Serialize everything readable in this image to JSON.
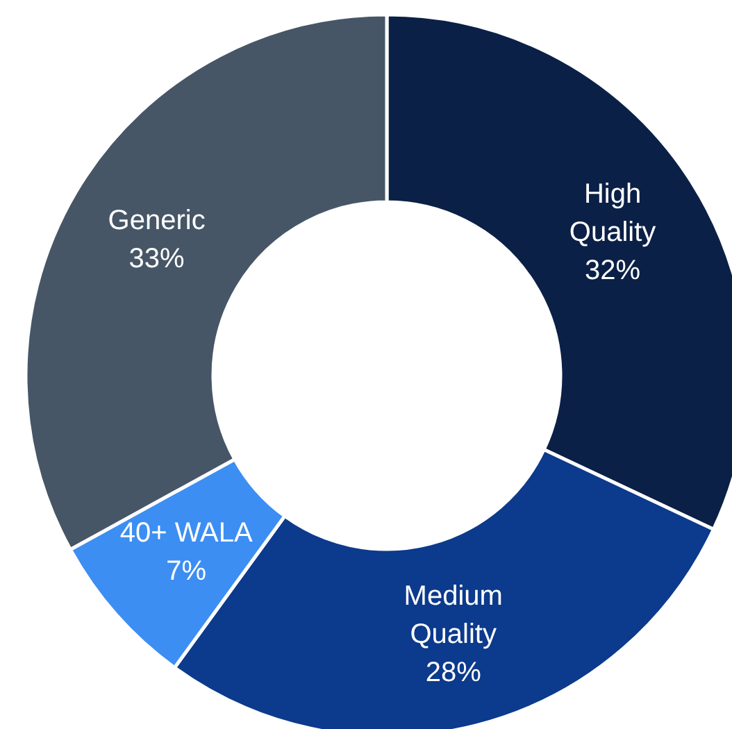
{
  "chart_data": {
    "type": "donut",
    "categories": [
      "High Quality",
      "Medium Quality",
      "40+ WALA",
      "Generic"
    ],
    "values": [
      32,
      28,
      7,
      33
    ],
    "colors": [
      "#0b2046",
      "#0c3a8c",
      "#3d8ef2",
      "#465666"
    ],
    "value_labels": [
      "32%",
      "28%",
      "7%",
      "33%"
    ],
    "legend": false
  }
}
